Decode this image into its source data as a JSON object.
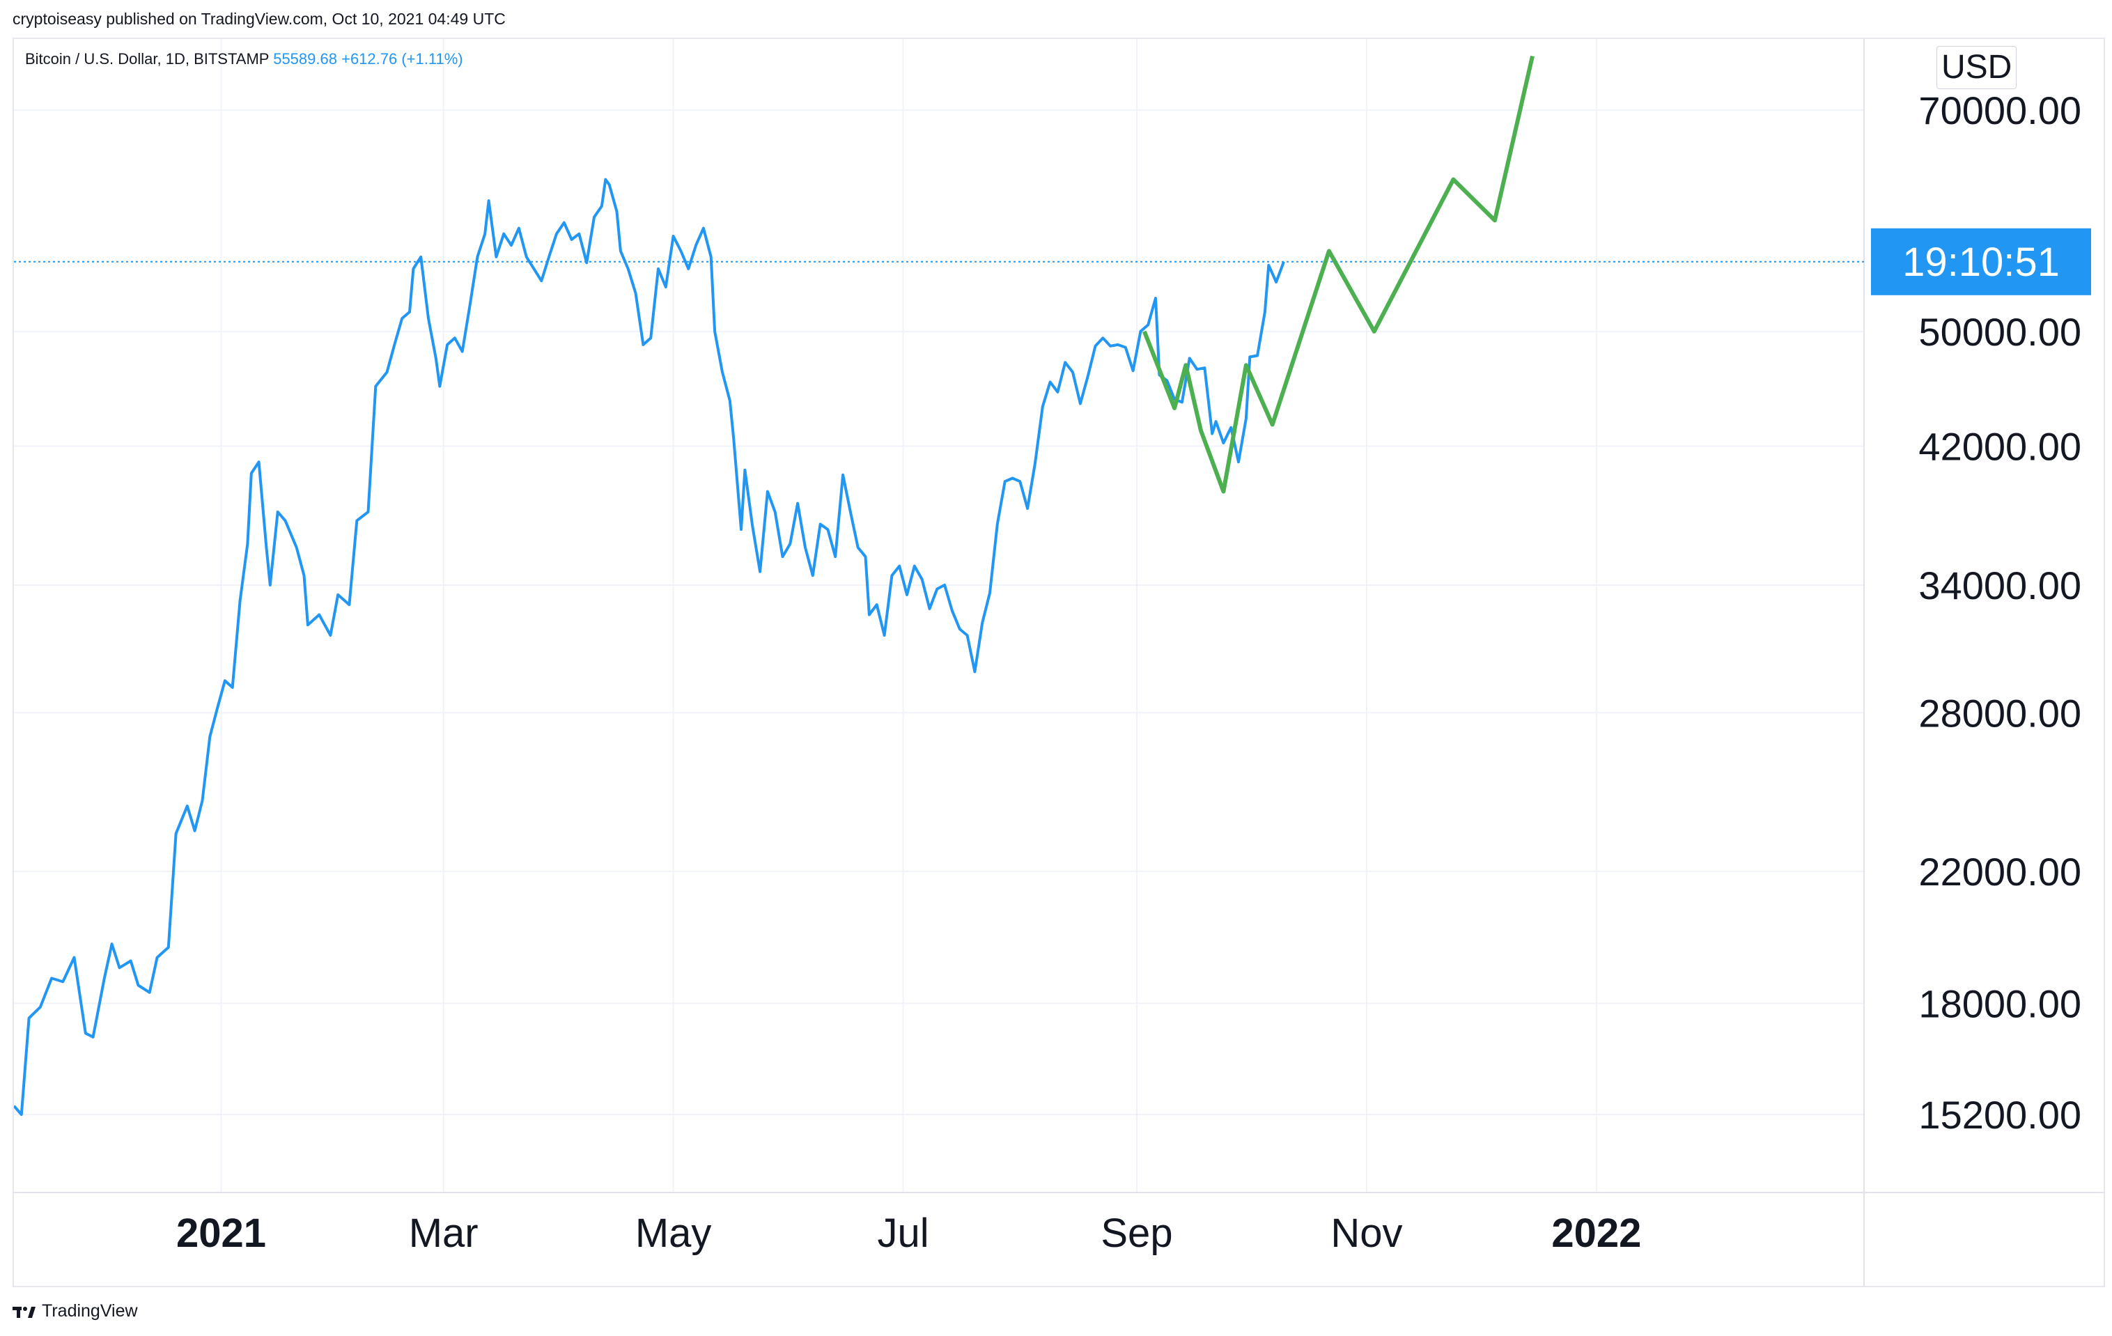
{
  "header": {
    "publisher_line": "cryptoiseasy published on TradingView.com, Oct 10, 2021 04:49 UTC"
  },
  "legend": {
    "symbol": "Bitcoin / U.S. Dollar, 1D, BITSTAMP",
    "price": "55589.68",
    "change": "+612.76 (+1.11%)"
  },
  "footer": {
    "brand": "TradingView"
  },
  "price_scale": {
    "currency": "USD",
    "countdown_label": "19:10:51"
  },
  "colors": {
    "price_line": "#2196f3",
    "forecast_line": "#4caf50",
    "countdown_bg": "#2196f3",
    "grid": "#f0f3fa"
  },
  "chart_data": {
    "type": "line",
    "title": "",
    "xlabel": "",
    "ylabel": "",
    "y_scale": "log",
    "ylim": [
      13500,
      78000
    ],
    "xlim": [
      "2020-11-07",
      "2022-03-13"
    ],
    "y_ticks": [
      "70000.00",
      "50000.00",
      "42000.00",
      "34000.00",
      "28000.00",
      "22000.00",
      "18000.00",
      "15200.00"
    ],
    "x_ticks": [
      {
        "date": "2021-01-01",
        "label": "2021",
        "bold": true
      },
      {
        "date": "2021-03-01",
        "label": "Mar",
        "bold": false
      },
      {
        "date": "2021-05-01",
        "label": "May",
        "bold": false
      },
      {
        "date": "2021-07-01",
        "label": "Jul",
        "bold": false
      },
      {
        "date": "2021-09-01",
        "label": "Sep",
        "bold": false
      },
      {
        "date": "2021-11-01",
        "label": "Nov",
        "bold": false
      },
      {
        "date": "2022-01-01",
        "label": "2022",
        "bold": true
      }
    ],
    "current_price": 55589.68,
    "series": [
      {
        "name": "",
        "color": "#2196f3",
        "points": [
          [
            "2020-11-07",
            15400
          ],
          [
            "2020-11-09",
            15200
          ],
          [
            "2020-11-11",
            17600
          ],
          [
            "2020-11-14",
            17900
          ],
          [
            "2020-11-17",
            18700
          ],
          [
            "2020-11-20",
            18600
          ],
          [
            "2020-11-23",
            19300
          ],
          [
            "2020-11-26",
            17200
          ],
          [
            "2020-11-28",
            17100
          ],
          [
            "2020-12-01",
            18700
          ],
          [
            "2020-12-03",
            19700
          ],
          [
            "2020-12-05",
            19000
          ],
          [
            "2020-12-08",
            19200
          ],
          [
            "2020-12-10",
            18500
          ],
          [
            "2020-12-13",
            18300
          ],
          [
            "2020-12-15",
            19300
          ],
          [
            "2020-12-18",
            19600
          ],
          [
            "2020-12-20",
            23300
          ],
          [
            "2020-12-23",
            24300
          ],
          [
            "2020-12-25",
            23400
          ],
          [
            "2020-12-27",
            24500
          ],
          [
            "2020-12-29",
            27000
          ],
          [
            "2020-12-31",
            28200
          ],
          [
            "2021-01-02",
            29400
          ],
          [
            "2021-01-04",
            29100
          ],
          [
            "2021-01-06",
            33200
          ],
          [
            "2021-01-08",
            36200
          ],
          [
            "2021-01-09",
            40300
          ],
          [
            "2021-01-11",
            41000
          ],
          [
            "2021-01-13",
            36000
          ],
          [
            "2021-01-14",
            34000
          ],
          [
            "2021-01-16",
            38000
          ],
          [
            "2021-01-18",
            37500
          ],
          [
            "2021-01-21",
            36000
          ],
          [
            "2021-01-23",
            34500
          ],
          [
            "2021-01-24",
            32000
          ],
          [
            "2021-01-27",
            32500
          ],
          [
            "2021-01-30",
            31500
          ],
          [
            "2021-02-01",
            33500
          ],
          [
            "2021-02-04",
            33000
          ],
          [
            "2021-02-06",
            37500
          ],
          [
            "2021-02-09",
            38000
          ],
          [
            "2021-02-11",
            46000
          ],
          [
            "2021-02-14",
            47000
          ],
          [
            "2021-02-16",
            49000
          ],
          [
            "2021-02-18",
            51000
          ],
          [
            "2021-02-20",
            51500
          ],
          [
            "2021-02-21",
            55000
          ],
          [
            "2021-02-23",
            56000
          ],
          [
            "2021-02-25",
            51000
          ],
          [
            "2021-02-27",
            48000
          ],
          [
            "2021-02-28",
            46000
          ],
          [
            "2021-03-02",
            49000
          ],
          [
            "2021-03-04",
            49500
          ],
          [
            "2021-03-06",
            48500
          ],
          [
            "2021-03-08",
            52000
          ],
          [
            "2021-03-10",
            56000
          ],
          [
            "2021-03-12",
            58000
          ],
          [
            "2021-03-13",
            61000
          ],
          [
            "2021-03-15",
            56000
          ],
          [
            "2021-03-17",
            58000
          ],
          [
            "2021-03-19",
            57000
          ],
          [
            "2021-03-21",
            58500
          ],
          [
            "2021-03-23",
            56000
          ],
          [
            "2021-03-25",
            55000
          ],
          [
            "2021-03-27",
            54000
          ],
          [
            "2021-03-29",
            56000
          ],
          [
            "2021-03-31",
            58000
          ],
          [
            "2021-04-02",
            59000
          ],
          [
            "2021-04-04",
            57500
          ],
          [
            "2021-04-06",
            58000
          ],
          [
            "2021-04-08",
            55500
          ],
          [
            "2021-04-10",
            59500
          ],
          [
            "2021-04-12",
            60500
          ],
          [
            "2021-04-13",
            63000
          ],
          [
            "2021-04-14",
            62500
          ],
          [
            "2021-04-16",
            60000
          ],
          [
            "2021-04-17",
            56500
          ],
          [
            "2021-04-19",
            55000
          ],
          [
            "2021-04-21",
            53000
          ],
          [
            "2021-04-23",
            49000
          ],
          [
            "2021-04-25",
            49500
          ],
          [
            "2021-04-27",
            55000
          ],
          [
            "2021-04-29",
            53500
          ],
          [
            "2021-05-01",
            57800
          ],
          [
            "2021-05-03",
            56500
          ],
          [
            "2021-05-05",
            55000
          ],
          [
            "2021-05-07",
            57000
          ],
          [
            "2021-05-09",
            58500
          ],
          [
            "2021-05-11",
            56000
          ],
          [
            "2021-05-12",
            50000
          ],
          [
            "2021-05-14",
            47000
          ],
          [
            "2021-05-16",
            45000
          ],
          [
            "2021-05-17",
            42500
          ],
          [
            "2021-05-19",
            37000
          ],
          [
            "2021-05-20",
            40500
          ],
          [
            "2021-05-22",
            37200
          ],
          [
            "2021-05-24",
            34700
          ],
          [
            "2021-05-26",
            39200
          ],
          [
            "2021-05-28",
            38000
          ],
          [
            "2021-05-30",
            35500
          ],
          [
            "2021-06-01",
            36200
          ],
          [
            "2021-06-03",
            38500
          ],
          [
            "2021-06-05",
            36000
          ],
          [
            "2021-06-07",
            34500
          ],
          [
            "2021-06-09",
            37300
          ],
          [
            "2021-06-11",
            37000
          ],
          [
            "2021-06-13",
            35500
          ],
          [
            "2021-06-15",
            40200
          ],
          [
            "2021-06-17",
            38000
          ],
          [
            "2021-06-19",
            36000
          ],
          [
            "2021-06-21",
            35500
          ],
          [
            "2021-06-22",
            32500
          ],
          [
            "2021-06-24",
            33000
          ],
          [
            "2021-06-26",
            31500
          ],
          [
            "2021-06-28",
            34500
          ],
          [
            "2021-06-30",
            35000
          ],
          [
            "2021-07-02",
            33500
          ],
          [
            "2021-07-04",
            35000
          ],
          [
            "2021-07-06",
            34300
          ],
          [
            "2021-07-08",
            32800
          ],
          [
            "2021-07-10",
            33800
          ],
          [
            "2021-07-12",
            34000
          ],
          [
            "2021-07-14",
            32700
          ],
          [
            "2021-07-16",
            31800
          ],
          [
            "2021-07-18",
            31500
          ],
          [
            "2021-07-20",
            29800
          ],
          [
            "2021-07-22",
            32100
          ],
          [
            "2021-07-24",
            33600
          ],
          [
            "2021-07-26",
            37300
          ],
          [
            "2021-07-28",
            39800
          ],
          [
            "2021-07-30",
            40000
          ],
          [
            "2021-08-01",
            39800
          ],
          [
            "2021-08-03",
            38200
          ],
          [
            "2021-08-05",
            40900
          ],
          [
            "2021-08-07",
            44600
          ],
          [
            "2021-08-09",
            46300
          ],
          [
            "2021-08-11",
            45600
          ],
          [
            "2021-08-13",
            47700
          ],
          [
            "2021-08-15",
            47000
          ],
          [
            "2021-08-17",
            44800
          ],
          [
            "2021-08-19",
            46700
          ],
          [
            "2021-08-21",
            48900
          ],
          [
            "2021-08-23",
            49500
          ],
          [
            "2021-08-25",
            48900
          ],
          [
            "2021-08-27",
            49000
          ],
          [
            "2021-08-29",
            48800
          ],
          [
            "2021-08-31",
            47100
          ],
          [
            "2021-09-02",
            50000
          ],
          [
            "2021-09-04",
            50500
          ],
          [
            "2021-09-06",
            52600
          ],
          [
            "2021-09-07",
            46800
          ],
          [
            "2021-09-09",
            46400
          ],
          [
            "2021-09-11",
            45100
          ],
          [
            "2021-09-13",
            44900
          ],
          [
            "2021-09-15",
            48000
          ],
          [
            "2021-09-17",
            47200
          ],
          [
            "2021-09-19",
            47300
          ],
          [
            "2021-09-21",
            42800
          ],
          [
            "2021-09-22",
            43600
          ],
          [
            "2021-09-24",
            42200
          ],
          [
            "2021-09-26",
            43200
          ],
          [
            "2021-09-28",
            41000
          ],
          [
            "2021-09-30",
            43800
          ],
          [
            "2021-10-01",
            48100
          ],
          [
            "2021-10-03",
            48200
          ],
          [
            "2021-10-05",
            51500
          ],
          [
            "2021-10-06",
            55300
          ],
          [
            "2021-10-08",
            53900
          ],
          [
            "2021-10-10",
            55589.68
          ]
        ]
      },
      {
        "name": "",
        "color": "#4caf50",
        "points": [
          [
            "2021-09-03",
            50000
          ],
          [
            "2021-09-11",
            44500
          ],
          [
            "2021-09-14",
            47500
          ],
          [
            "2021-09-18",
            43000
          ],
          [
            "2021-09-24",
            39200
          ],
          [
            "2021-09-30",
            47500
          ],
          [
            "2021-10-07",
            43400
          ],
          [
            "2021-10-22",
            56500
          ],
          [
            "2021-11-03",
            50000
          ],
          [
            "2021-11-24",
            63000
          ],
          [
            "2021-12-05",
            59200
          ],
          [
            "2021-12-15",
            76000
          ]
        ]
      }
    ]
  }
}
